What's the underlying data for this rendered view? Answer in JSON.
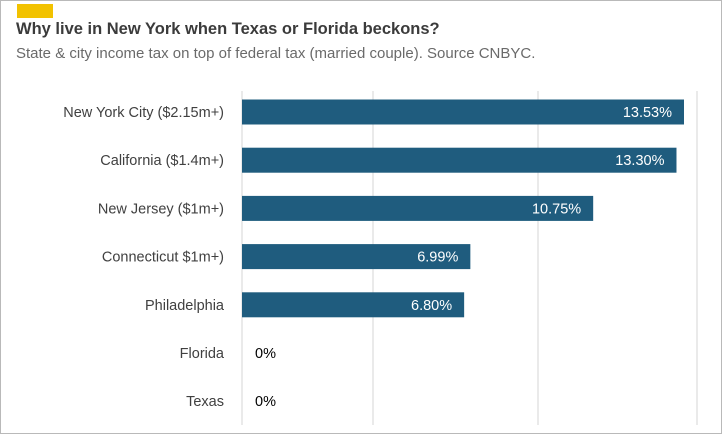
{
  "header": {
    "title": "Why live in New York when Texas or Florida beckons?",
    "subtitle": "State & city income tax on top of federal tax (married couple). Source CNBYC."
  },
  "colors": {
    "bar": "#1f5c7e",
    "label_inside": "#ffffff",
    "label_outside": "#000000",
    "category_text": "#404040",
    "grid": "#d4d4d4",
    "accent": "#f2c200"
  },
  "chart_data": {
    "type": "bar",
    "orientation": "horizontal",
    "title": "Why live in New York when Texas or Florida beckons?",
    "subtitle": "State & city income tax on top of federal tax (married couple). Source CNBYC.",
    "categories": [
      "New York City ($2.15m+)",
      "California ($1.4m+)",
      "New Jersey ($1m+)",
      "Connecticut $1m+)",
      "Philadelphia",
      "Florida",
      "Texas"
    ],
    "values": [
      13.53,
      13.3,
      10.75,
      6.99,
      6.8,
      0,
      0
    ],
    "data_labels": [
      "13.53%",
      "13.30%",
      "10.75%",
      "6.99%",
      "6.80%",
      "0%",
      "0%"
    ],
    "xlim": [
      0,
      14
    ],
    "grid": true,
    "legend": "none"
  }
}
